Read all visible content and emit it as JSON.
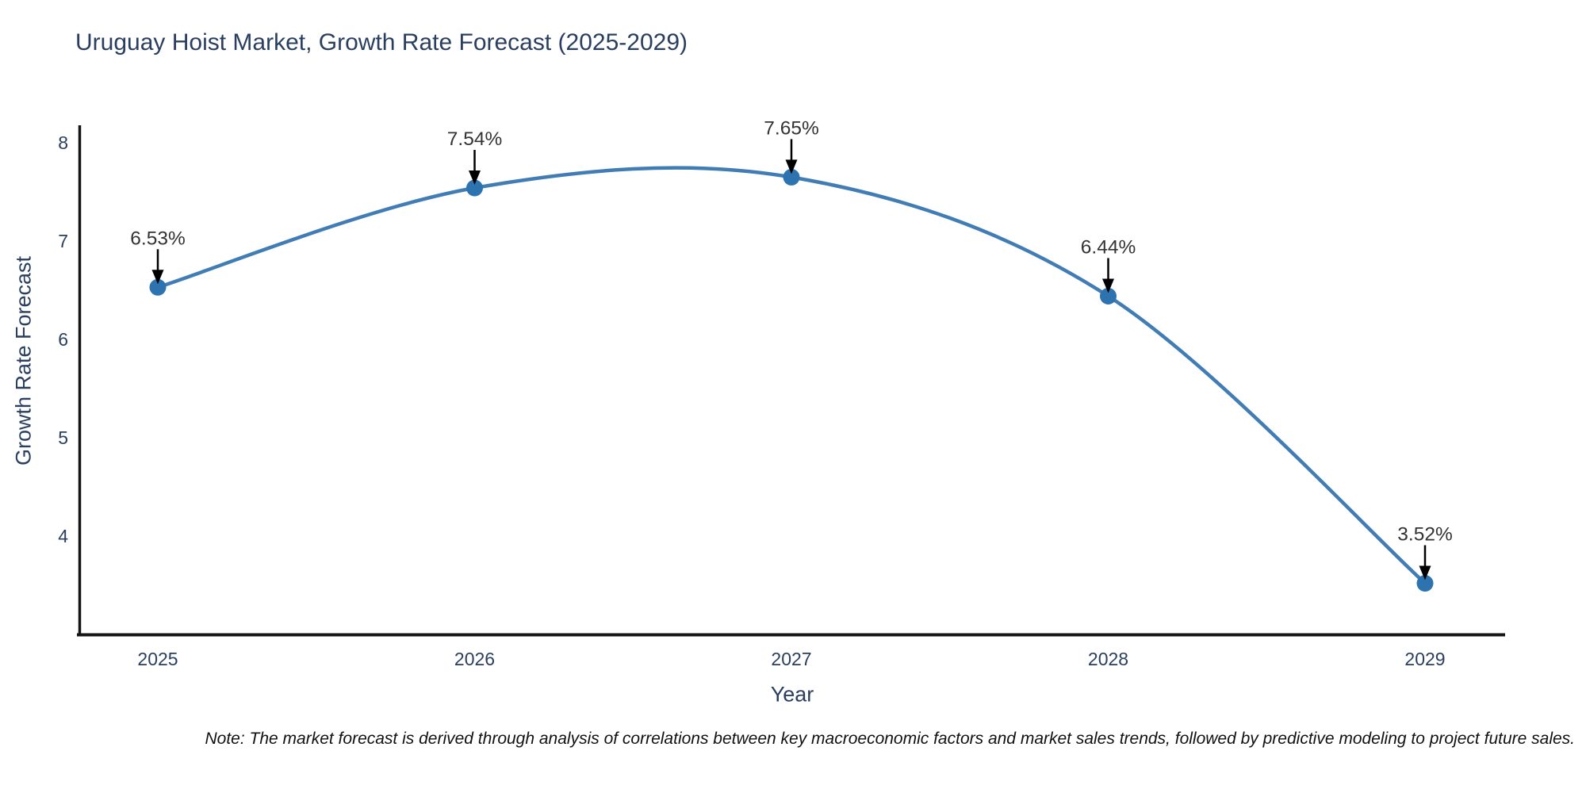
{
  "title": "Uruguay Hoist Market, Growth Rate Forecast (2025-2029)",
  "note": "Note: The market forecast is derived through analysis of correlations between key macroeconomic factors and market sales trends, followed by predictive modeling to project future sales.",
  "colors": {
    "background": "#ffffff",
    "line": "#417db4",
    "marker": "#2d73b0",
    "title_text": "#2a3f5f",
    "axis_text": "#2a3f5f",
    "axis_line": "#141414",
    "annotation_text": "#333333",
    "arrow": "#000000"
  },
  "chart_data": {
    "type": "line",
    "title": "Uruguay Hoist Market, Growth Rate Forecast (2025-2029)",
    "xlabel": "Year",
    "ylabel": "Growth Rate Forecast",
    "x": [
      2025,
      2026,
      2027,
      2028,
      2029
    ],
    "values": [
      6.53,
      7.54,
      7.65,
      6.44,
      3.52
    ],
    "point_labels": [
      "6.53%",
      "7.54%",
      "7.65%",
      "6.44%",
      "3.52%"
    ],
    "yticks": [
      4,
      5,
      6,
      7,
      8
    ],
    "ylim": [
      3.0,
      8.2
    ],
    "line_shape": "spline",
    "grid": false,
    "legend": false,
    "annotations": "arrow-down-to-point"
  }
}
